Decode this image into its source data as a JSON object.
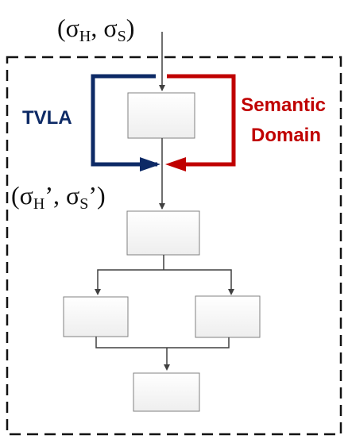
{
  "labels": {
    "input": {
      "paren_open": "(",
      "sigma1": "σ",
      "sub1": "H",
      "sep": ", σ",
      "sub2": "S",
      "paren_close": ")"
    },
    "output": {
      "paren_open": "(",
      "sigma1": "σ",
      "sub1": "H",
      "prime_sep": "’, σ",
      "sub2": "S",
      "prime_close": "’)"
    },
    "tvla": "TVLA",
    "semantic_line1": "Semantic",
    "semantic_line2": "Domain"
  },
  "colors": {
    "tvla": "#0d2a66",
    "semantic": "#c00000",
    "box_fill": "#f2f2f2",
    "box_stroke": "#808080",
    "arrow": "#404040",
    "frame": "#111111"
  }
}
